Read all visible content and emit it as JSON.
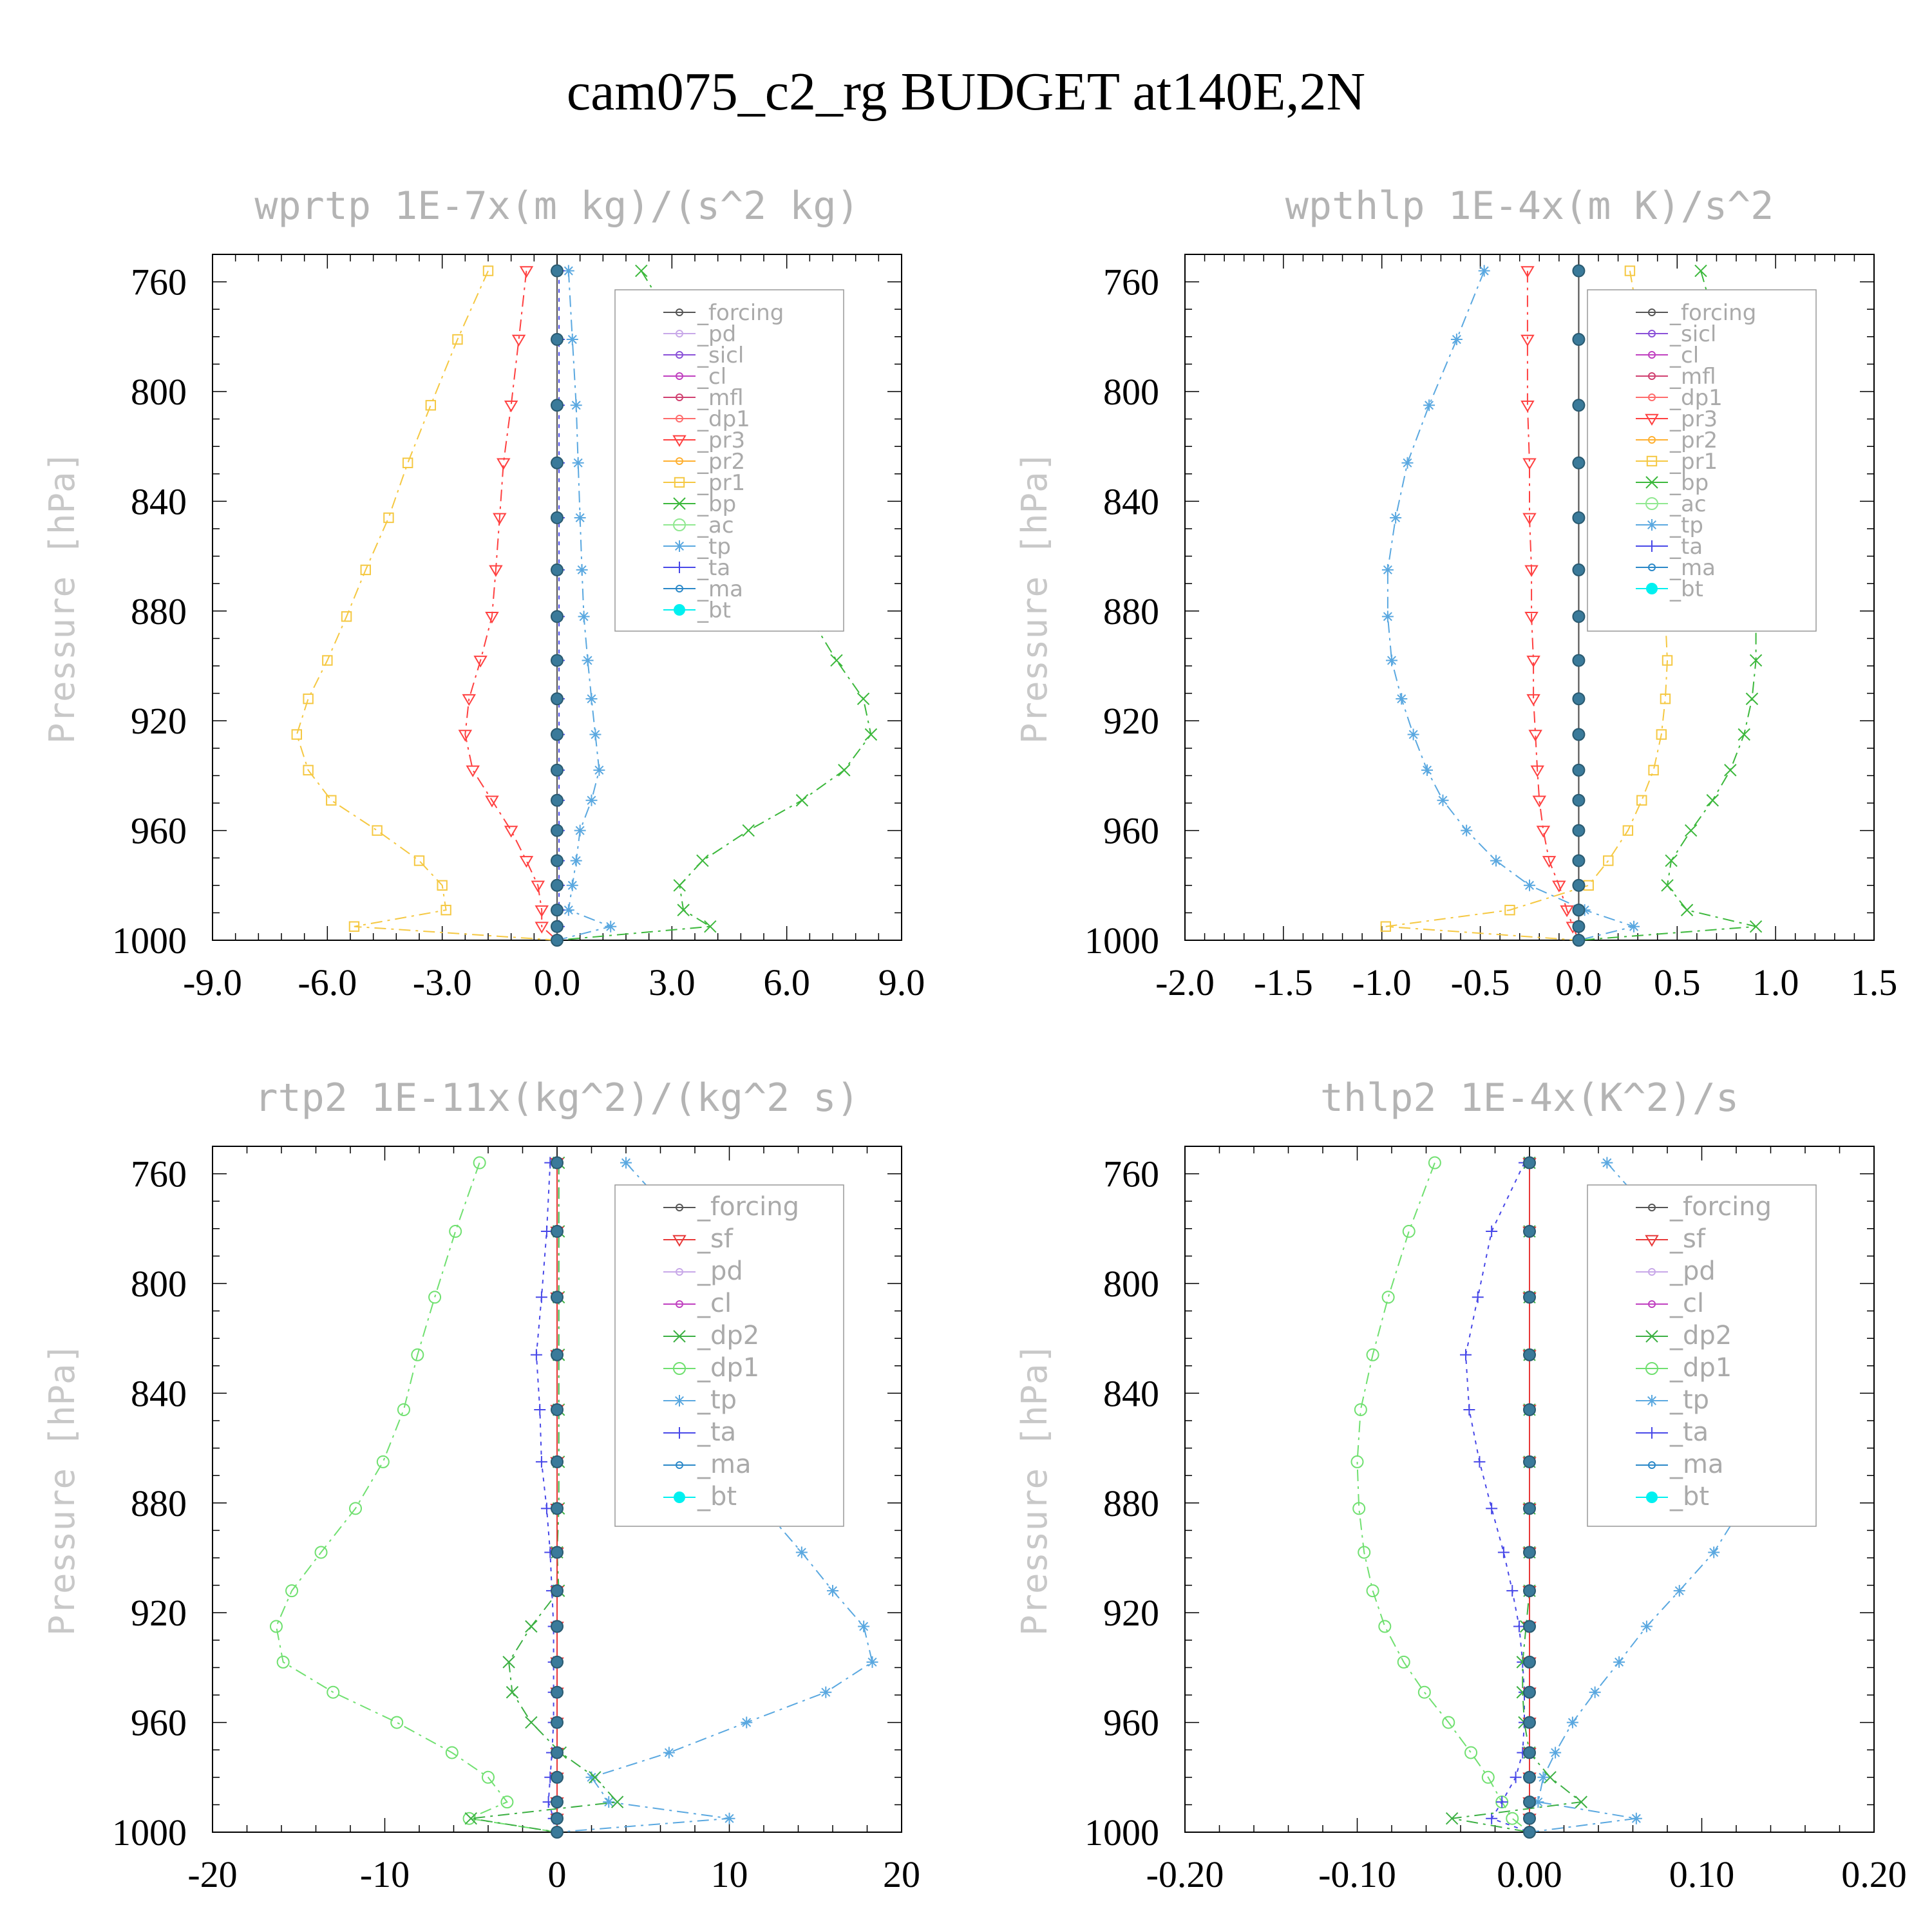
{
  "title": "cam075_c2_rg  BUDGET at140E,2N",
  "ylabel": "Pressure [hPa]",
  "colors": {
    "forcing": "#555555",
    "pd": "#c8a8e8",
    "sicl": "#8a50d8",
    "cl": "#c040c0",
    "mfl": "#d04070",
    "dp1": "#ff6b6b",
    "pr3": "#ff4040",
    "pr2": "#ffb030",
    "pr1": "#f5c842",
    "bp": "#3cb83c",
    "ac": "#90e890",
    "tp": "#5aa8e0",
    "ta": "#4848e8",
    "ma": "#2a88c8",
    "bt": "#00f0f0",
    "sf": "#e83838",
    "dp2": "#3cb043",
    "dp1b": "#70e070"
  },
  "chart_data": [
    {
      "type": "line",
      "title": "wprtp   1E-7x(m kg)/(s^2 kg)",
      "ylabel": "Pressure [hPa]",
      "xlim": [
        -9,
        9
      ],
      "ylim": [
        1000,
        750
      ],
      "xticks": [
        "-9.0",
        "-6.0",
        "-3.0",
        "0.0",
        "3.0",
        "6.0",
        "9.0"
      ],
      "yticks": [
        "760",
        "800",
        "840",
        "880",
        "920",
        "960",
        "1000"
      ],
      "legend": [
        "_forcing",
        "_pd",
        "_sicl",
        "_cl",
        "_mfl",
        "_dp1",
        "_pr3",
        "_pr2",
        "_pr1",
        "_bp",
        "_ac",
        "_tp",
        "_ta",
        "_ma",
        "_bt"
      ],
      "y": [
        756,
        781,
        805,
        826,
        846,
        865,
        882,
        898,
        912,
        925,
        938,
        949,
        960,
        971,
        980,
        989,
        995,
        1000
      ],
      "series": [
        {
          "key": "pr1",
          "values": [
            -1.8,
            -2.6,
            -3.3,
            -3.9,
            -4.4,
            -5.0,
            -5.5,
            -6.0,
            -6.5,
            -6.8,
            -6.5,
            -5.9,
            -4.7,
            -3.6,
            -3.0,
            -2.9,
            -5.3,
            0.0
          ]
        },
        {
          "key": "pr3",
          "values": [
            -0.8,
            -1.0,
            -1.2,
            -1.4,
            -1.5,
            -1.6,
            -1.7,
            -2.0,
            -2.3,
            -2.4,
            -2.2,
            -1.7,
            -1.2,
            -0.8,
            -0.5,
            -0.4,
            -0.4,
            0.0
          ]
        },
        {
          "key": "bp",
          "values": [
            2.2,
            3.3,
            4.2,
            4.8,
            5.3,
            5.9,
            6.6,
            7.3,
            8.0,
            8.2,
            7.5,
            6.4,
            5.0,
            3.8,
            3.2,
            3.3,
            4.0,
            0.0
          ]
        },
        {
          "key": "tp",
          "values": [
            0.3,
            0.4,
            0.5,
            0.55,
            0.6,
            0.65,
            0.7,
            0.8,
            0.9,
            1.0,
            1.1,
            0.9,
            0.6,
            0.5,
            0.4,
            0.3,
            1.4,
            0.0
          ]
        },
        {
          "key": "ta",
          "values": [
            0.05,
            0.05,
            0.05,
            0.05,
            0.05,
            0.05,
            0.05,
            0.05,
            0.05,
            0.05,
            0.05,
            0.05,
            0.05,
            0.05,
            0.05,
            0.05,
            0.05,
            0.0
          ]
        },
        {
          "key": "forcing",
          "values": [
            0,
            0,
            0,
            0,
            0,
            0,
            0,
            0,
            0,
            0,
            0,
            0,
            0,
            0,
            0,
            0,
            0,
            0
          ]
        }
      ],
      "bt": [
        0,
        0,
        0,
        0,
        0,
        0,
        0,
        0,
        0,
        0,
        0,
        0,
        0,
        0,
        0,
        0,
        0,
        0
      ]
    },
    {
      "type": "line",
      "title": "wpthlp   1E-4x(m K)/s^2",
      "ylabel": "Pressure [hPa]",
      "xlim": [
        -2.0,
        1.5
      ],
      "ylim": [
        1000,
        750
      ],
      "xticks": [
        "-2.0",
        "-1.5",
        "-1.0",
        "-0.5",
        "0.0",
        "0.5",
        "1.0",
        "1.5"
      ],
      "yticks": [
        "760",
        "800",
        "840",
        "880",
        "920",
        "960",
        "1000"
      ],
      "legend": [
        "_forcing",
        "_sicl",
        "_cl",
        "_mfl",
        "_dp1",
        "_pr3",
        "_pr2",
        "_pr1",
        "_bp",
        "_ac",
        "_tp",
        "_ta",
        "_ma",
        "_bt"
      ],
      "y": [
        756,
        781,
        805,
        826,
        846,
        865,
        882,
        898,
        912,
        925,
        938,
        949,
        960,
        971,
        980,
        989,
        995,
        1000
      ],
      "series": [
        {
          "key": "tp",
          "values": [
            -0.48,
            -0.62,
            -0.76,
            -0.87,
            -0.93,
            -0.97,
            -0.97,
            -0.95,
            -0.9,
            -0.84,
            -0.77,
            -0.69,
            -0.57,
            -0.42,
            -0.25,
            0.03,
            0.28,
            0.0
          ]
        },
        {
          "key": "pr1",
          "values": [
            0.26,
            0.32,
            0.36,
            0.39,
            0.41,
            0.43,
            0.44,
            0.45,
            0.44,
            0.42,
            0.38,
            0.32,
            0.25,
            0.15,
            0.05,
            -0.35,
            -0.98,
            0.0
          ]
        },
        {
          "key": "bp",
          "values": [
            0.62,
            0.72,
            0.78,
            0.82,
            0.85,
            0.88,
            0.9,
            0.9,
            0.88,
            0.84,
            0.77,
            0.68,
            0.57,
            0.47,
            0.45,
            0.55,
            0.9,
            0.0
          ]
        },
        {
          "key": "pr3",
          "values": [
            -0.26,
            -0.26,
            -0.26,
            -0.25,
            -0.25,
            -0.24,
            -0.24,
            -0.23,
            -0.23,
            -0.22,
            -0.21,
            -0.2,
            -0.18,
            -0.15,
            -0.1,
            -0.06,
            -0.03,
            0.0
          ]
        },
        {
          "key": "forcing",
          "values": [
            0,
            0,
            0,
            0,
            0,
            0,
            0,
            0,
            0,
            0,
            0,
            0,
            0,
            0,
            0,
            0,
            0,
            0
          ]
        }
      ],
      "bt": [
        0,
        0,
        0,
        0,
        0,
        0,
        0,
        0,
        0,
        0,
        0,
        0,
        0,
        0,
        0,
        0,
        0,
        0
      ]
    },
    {
      "type": "line",
      "title": "rtp2   1E-11x(kg^2)/(kg^2 s)",
      "ylabel": "Pressure [hPa]",
      "xlim": [
        -20,
        20
      ],
      "ylim": [
        1000,
        750
      ],
      "xticks": [
        "-20",
        "-10",
        "0",
        "10",
        "20"
      ],
      "yticks": [
        "760",
        "800",
        "840",
        "880",
        "920",
        "960",
        "1000"
      ],
      "legend": [
        "_forcing",
        "_sf",
        "_pd",
        "_cl",
        "_dp2",
        "_dp1",
        "_tp",
        "_ta",
        "_ma",
        "_bt"
      ],
      "y": [
        756,
        781,
        805,
        826,
        846,
        865,
        882,
        898,
        912,
        925,
        938,
        949,
        960,
        971,
        980,
        989,
        995,
        1000
      ],
      "series": [
        {
          "key": "dp1b",
          "values": [
            -4.5,
            -5.9,
            -7.1,
            -8.1,
            -8.9,
            -10.1,
            -11.7,
            -13.7,
            -15.4,
            -16.3,
            -15.9,
            -13.0,
            -9.3,
            -6.1,
            -4.0,
            -2.9,
            -5.1,
            0.0
          ]
        },
        {
          "key": "tp",
          "values": [
            4.0,
            7.6,
            9.8,
            10.8,
            11.5,
            11.8,
            12.0,
            14.2,
            16.0,
            17.8,
            18.3,
            15.6,
            11.0,
            6.5,
            2.0,
            3.0,
            10.0,
            0.0
          ]
        },
        {
          "key": "dp2",
          "values": [
            0.1,
            0.1,
            0.1,
            0.1,
            0.1,
            0.1,
            0.1,
            0.0,
            0.1,
            -1.5,
            -2.8,
            -2.6,
            -1.5,
            0.2,
            2.2,
            3.5,
            -5.0,
            0.0
          ]
        },
        {
          "key": "ta",
          "values": [
            -0.4,
            -0.6,
            -0.9,
            -1.2,
            -1.0,
            -0.9,
            -0.6,
            -0.4,
            -0.3,
            -0.2,
            -0.2,
            -0.2,
            -0.2,
            -0.3,
            -0.4,
            -0.5,
            -0.2,
            0.0
          ]
        },
        {
          "key": "sf",
          "values": [
            0,
            0,
            0,
            0,
            0,
            0,
            0,
            0,
            0,
            0,
            0,
            0,
            0,
            0,
            0,
            0,
            0,
            0
          ]
        }
      ],
      "bt": [
        0,
        0,
        0,
        0,
        0,
        0,
        0,
        0,
        0,
        0,
        0,
        0,
        0,
        0,
        0,
        0,
        0,
        0
      ]
    },
    {
      "type": "line",
      "title": "thlp2   1E-4x(K^2)/s",
      "ylabel": "Pressure [hPa]",
      "xlim": [
        -0.2,
        0.2
      ],
      "ylim": [
        1000,
        750
      ],
      "xticks": [
        "-0.20",
        "-0.10",
        "0.00",
        "0.10",
        "0.20"
      ],
      "yticks": [
        "760",
        "800",
        "840",
        "880",
        "920",
        "960",
        "1000"
      ],
      "legend": [
        "_forcing",
        "_sf",
        "_pd",
        "_cl",
        "_dp2",
        "_dp1",
        "_tp",
        "_ta",
        "_ma",
        "_bt"
      ],
      "y": [
        756,
        781,
        805,
        826,
        846,
        865,
        882,
        898,
        912,
        925,
        938,
        949,
        960,
        971,
        980,
        989,
        995,
        1000
      ],
      "series": [
        {
          "key": "dp1b",
          "values": [
            -0.055,
            -0.07,
            -0.082,
            -0.091,
            -0.098,
            -0.1,
            -0.099,
            -0.096,
            -0.091,
            -0.084,
            -0.073,
            -0.061,
            -0.047,
            -0.034,
            -0.024,
            -0.016,
            -0.01,
            0.0
          ]
        },
        {
          "key": "tp",
          "values": [
            0.045,
            0.08,
            0.11,
            0.128,
            0.133,
            0.129,
            0.123,
            0.107,
            0.087,
            0.068,
            0.052,
            0.038,
            0.025,
            0.015,
            0.008,
            0.005,
            0.062,
            0.0
          ]
        },
        {
          "key": "ta",
          "values": [
            -0.003,
            -0.022,
            -0.03,
            -0.037,
            -0.035,
            -0.029,
            -0.022,
            -0.015,
            -0.01,
            -0.006,
            -0.004,
            -0.003,
            -0.003,
            -0.004,
            -0.008,
            -0.016,
            -0.022,
            0.0
          ]
        },
        {
          "key": "dp2",
          "values": [
            0.0,
            0.0,
            0.0,
            0.0,
            0.0,
            0.0,
            0.0,
            0.0,
            0.0,
            -0.002,
            -0.004,
            -0.004,
            -0.003,
            0.0,
            0.012,
            0.03,
            -0.045,
            0.0
          ]
        },
        {
          "key": "sf",
          "values": [
            0,
            0,
            0,
            0,
            0,
            0,
            0,
            0,
            0,
            0,
            0,
            0,
            0,
            0,
            0,
            0,
            0,
            0
          ]
        }
      ],
      "bt": [
        0,
        0,
        0,
        0,
        0,
        0,
        0,
        0,
        0,
        0,
        0,
        0,
        0,
        0,
        0,
        0,
        0,
        0
      ]
    }
  ]
}
